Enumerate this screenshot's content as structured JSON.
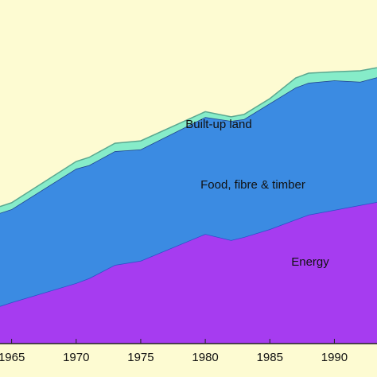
{
  "chart_data": {
    "type": "stacked_area",
    "x": [
      1964.1,
      1965,
      1970,
      1971,
      1973,
      1975,
      1980,
      1982,
      1983,
      1985,
      1987,
      1988,
      1990,
      1992,
      1993.3
    ],
    "series": [
      {
        "name": "Energy",
        "color": "#a63cf0",
        "values": [
          10.9,
          12.0,
          17.6,
          19.0,
          22.9,
          24.1,
          31.9,
          30.1,
          31.0,
          33.3,
          36.1,
          37.5,
          38.9,
          40.3,
          41.2
        ]
      },
      {
        "name": "Food, fibre & timber",
        "color": "#3b8be2",
        "values": [
          27.1,
          27.1,
          33.3,
          32.9,
          33.1,
          32.4,
          34.0,
          34.7,
          34.3,
          36.6,
          38.4,
          38.4,
          37.7,
          35.9,
          36.3
        ]
      },
      {
        "name": "Built-up land",
        "color": "#86ecc9",
        "values": [
          1.9,
          1.9,
          2.1,
          2.3,
          2.3,
          2.5,
          1.6,
          1.2,
          1.4,
          1.4,
          2.8,
          2.8,
          2.5,
          3.2,
          2.8
        ]
      }
    ],
    "xlim": [
      1964.1,
      1993.3
    ],
    "xticks": [
      1965,
      1970,
      1975,
      1980,
      1985,
      1990
    ],
    "ylim": [
      0,
      100
    ]
  }
}
